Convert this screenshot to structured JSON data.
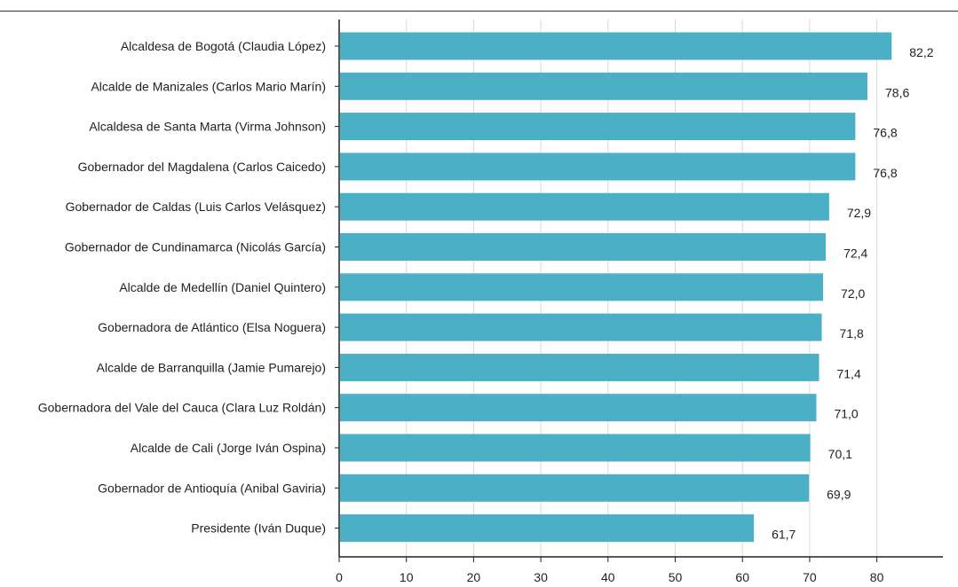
{
  "chart_data": {
    "type": "bar",
    "orientation": "horizontal",
    "categories": [
      "Alcaldesa de Bogotá (Claudia López)",
      "Alcalde de Manizales (Carlos Mario Marín)",
      "Alcaldesa de Santa Marta (Virma Johnson)",
      "Gobernador del Magdalena (Carlos Caicedo)",
      "Gobernador de Caldas (Luis Carlos Velásquez)",
      "Gobernador de Cundinamarca (Nicolás García)",
      "Alcalde de Medellín (Daniel Quintero)",
      "Gobernadora de Atlántico (Elsa Noguera)",
      "Alcalde de Barranquilla (Jamie Pumarejo)",
      "Gobernadora del Vale del Cauca (Clara Luz Roldán)",
      "Alcalde de Cali (Jorge Iván Ospina)",
      "Gobernador de Antioquía (Anibal Gaviria)",
      "Presidente (Iván Duque)"
    ],
    "values": [
      82.2,
      78.6,
      76.8,
      76.8,
      72.9,
      72.4,
      72.0,
      71.8,
      71.4,
      71.0,
      70.1,
      69.9,
      61.7
    ],
    "value_labels": [
      "82,2",
      "78,6",
      "76,8",
      "76,8",
      "72,9",
      "72,4",
      "72,0",
      "71,8",
      "71,4",
      "71,0",
      "70,1",
      "69,9",
      "61,7"
    ],
    "xlim": [
      0,
      90
    ],
    "xticks": [
      0,
      10,
      20,
      30,
      40,
      50,
      60,
      70,
      80
    ],
    "xtick_labels": [
      "0",
      "10",
      "20",
      "30",
      "40",
      "50",
      "60",
      "70",
      "80"
    ],
    "title": "",
    "xlabel": "",
    "ylabel": "",
    "grid": "vertical",
    "bar_color": "#4bafc5",
    "grid_color": "#d9d9d9",
    "axis_color": "#222222"
  }
}
